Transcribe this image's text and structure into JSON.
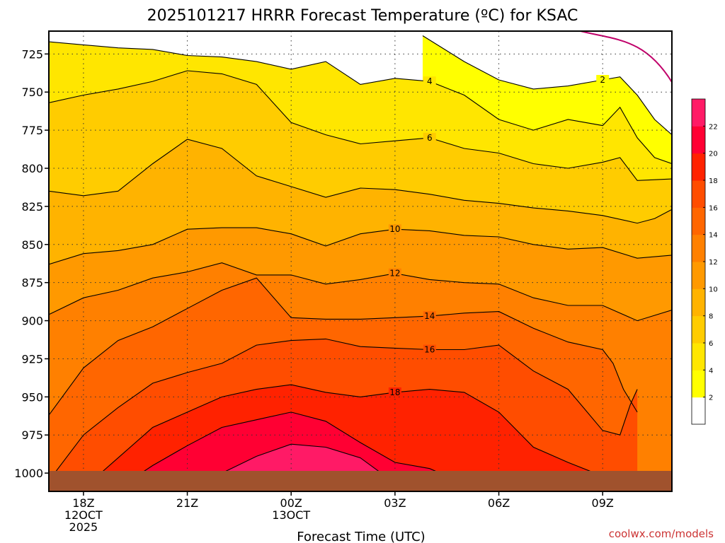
{
  "chart_data": {
    "type": "contour",
    "title": "2025101217 HRRR Forecast Temperature (ºC) for KSAC",
    "xlabel": "Forecast Time (UTC)",
    "ylabel": "",
    "credit": "coolwx.com/models",
    "x_unit": "hours since 2025-10-12 17Z",
    "xlim": [
      0,
      18
    ],
    "ylim": [
      1012,
      710
    ],
    "y_ticks": [
      725,
      750,
      775,
      800,
      825,
      850,
      875,
      900,
      925,
      950,
      975,
      1000
    ],
    "x_ticks": [
      {
        "x": 1,
        "lines": [
          "18Z",
          "12OCT",
          "2025"
        ]
      },
      {
        "x": 4,
        "lines": [
          "21Z"
        ]
      },
      {
        "x": 7,
        "lines": [
          "00Z",
          "13OCT"
        ]
      },
      {
        "x": 10,
        "lines": [
          "03Z"
        ]
      },
      {
        "x": 13,
        "lines": [
          "06Z"
        ]
      },
      {
        "x": 16,
        "lines": [
          "09Z"
        ]
      }
    ],
    "grid": true,
    "colorbar": {
      "levels": [
        0,
        2,
        4,
        6,
        8,
        10,
        12,
        14,
        16,
        18,
        20,
        22,
        24
      ],
      "tick_labels": [
        "2",
        "4",
        "6",
        "8",
        "10",
        "12",
        "14",
        "16",
        "18",
        "20",
        "22"
      ],
      "colors": [
        "#ffffff",
        "#ffff00",
        "#ffe600",
        "#ffcc00",
        "#ffb300",
        "#ff9900",
        "#ff8000",
        "#ff6600",
        "#ff4d00",
        "#ff2200",
        "#ff0033",
        "#ff1a66"
      ]
    },
    "contours": [
      {
        "level": 2,
        "label": "2",
        "points": [
          [
            10.8,
            713
          ],
          [
            12,
            730
          ],
          [
            13,
            742
          ],
          [
            14,
            748
          ],
          [
            15,
            746
          ],
          [
            16,
            742
          ],
          [
            16.5,
            740
          ],
          [
            17,
            752
          ],
          [
            17.5,
            768
          ],
          [
            18,
            778
          ]
        ]
      },
      {
        "level": 4,
        "label": "4",
        "points": [
          [
            0,
            717
          ],
          [
            1,
            719
          ],
          [
            2,
            721
          ],
          [
            3,
            722
          ],
          [
            4,
            726
          ],
          [
            5,
            727
          ],
          [
            6,
            730
          ],
          [
            7,
            735
          ],
          [
            8,
            730
          ],
          [
            9,
            745
          ],
          [
            10,
            741
          ],
          [
            11,
            743
          ],
          [
            12,
            752
          ],
          [
            13,
            768
          ],
          [
            14,
            775
          ],
          [
            15,
            768
          ],
          [
            16,
            772
          ],
          [
            16.5,
            760
          ],
          [
            17,
            780
          ],
          [
            17.5,
            793
          ],
          [
            18,
            797
          ]
        ]
      },
      {
        "level": 6,
        "label": "6",
        "points": [
          [
            0,
            757
          ],
          [
            1,
            752
          ],
          [
            2,
            748
          ],
          [
            3,
            743
          ],
          [
            4,
            736
          ],
          [
            5,
            738
          ],
          [
            6,
            745
          ],
          [
            7,
            770
          ],
          [
            8,
            778
          ],
          [
            9,
            784
          ],
          [
            10,
            782
          ],
          [
            11,
            780
          ],
          [
            12,
            787
          ],
          [
            13,
            790
          ],
          [
            14,
            797
          ],
          [
            15,
            800
          ],
          [
            16,
            796
          ],
          [
            16.5,
            793
          ],
          [
            17,
            808
          ],
          [
            18,
            807
          ]
        ]
      },
      {
        "level": 8,
        "label": "",
        "points": [
          [
            0,
            815
          ],
          [
            1,
            818
          ],
          [
            2,
            815
          ],
          [
            3,
            797
          ],
          [
            4,
            781
          ],
          [
            5,
            787
          ],
          [
            6,
            805
          ],
          [
            7,
            812
          ],
          [
            8,
            819
          ],
          [
            9,
            813
          ],
          [
            10,
            814
          ],
          [
            11,
            817
          ],
          [
            12,
            821
          ],
          [
            13,
            823
          ],
          [
            14,
            826
          ],
          [
            15,
            828
          ],
          [
            16,
            831
          ],
          [
            17,
            836
          ],
          [
            17.5,
            833
          ],
          [
            18,
            827
          ]
        ]
      },
      {
        "level": 10,
        "label": "10",
        "points": [
          [
            0,
            863
          ],
          [
            1,
            856
          ],
          [
            2,
            854
          ],
          [
            3,
            850
          ],
          [
            4,
            840
          ],
          [
            5,
            839
          ],
          [
            6,
            839
          ],
          [
            7,
            843
          ],
          [
            8,
            851
          ],
          [
            9,
            843
          ],
          [
            10,
            840
          ],
          [
            11,
            841
          ],
          [
            12,
            844
          ],
          [
            13,
            845
          ],
          [
            14,
            850
          ],
          [
            15,
            853
          ],
          [
            16,
            852
          ],
          [
            17,
            859
          ],
          [
            18,
            857
          ]
        ]
      },
      {
        "level": 12,
        "label": "12",
        "points": [
          [
            0,
            896
          ],
          [
            1,
            885
          ],
          [
            2,
            880
          ],
          [
            3,
            872
          ],
          [
            4,
            868
          ],
          [
            5,
            862
          ],
          [
            6,
            870
          ],
          [
            7,
            870
          ],
          [
            8,
            876
          ],
          [
            9,
            873
          ],
          [
            10,
            869
          ],
          [
            11,
            873
          ],
          [
            12,
            875
          ],
          [
            13,
            876
          ],
          [
            14,
            885
          ],
          [
            15,
            890
          ],
          [
            16,
            890
          ],
          [
            17,
            900
          ],
          [
            18,
            893
          ]
        ]
      },
      {
        "level": 14,
        "label": "14",
        "points": [
          [
            0,
            962
          ],
          [
            1,
            931
          ],
          [
            2,
            913
          ],
          [
            3,
            904
          ],
          [
            4,
            892
          ],
          [
            5,
            880
          ],
          [
            6,
            872
          ],
          [
            7,
            898
          ],
          [
            8,
            899
          ],
          [
            9,
            899
          ],
          [
            10,
            898
          ],
          [
            11,
            897
          ],
          [
            12,
            895
          ],
          [
            13,
            894
          ],
          [
            14,
            905
          ],
          [
            15,
            914
          ],
          [
            16,
            919
          ],
          [
            16.3,
            928
          ],
          [
            16.6,
            945
          ],
          [
            17,
            960
          ]
        ]
      },
      {
        "level": 16,
        "label": "16",
        "points": [
          [
            0,
            1005
          ],
          [
            1,
            975
          ],
          [
            2,
            957
          ],
          [
            3,
            941
          ],
          [
            4,
            934
          ],
          [
            5,
            928
          ],
          [
            6,
            916
          ],
          [
            7,
            913
          ],
          [
            8,
            912
          ],
          [
            9,
            917
          ],
          [
            10,
            918
          ],
          [
            11,
            919
          ],
          [
            12,
            919
          ],
          [
            13,
            916
          ],
          [
            14,
            933
          ],
          [
            15,
            945
          ],
          [
            16,
            972
          ],
          [
            16.5,
            975
          ],
          [
            16.8,
            955
          ],
          [
            17,
            945
          ]
        ]
      },
      {
        "level": 18,
        "label": "18",
        "points": [
          [
            1,
            1010
          ],
          [
            2,
            990
          ],
          [
            3,
            970
          ],
          [
            4,
            960
          ],
          [
            5,
            950
          ],
          [
            6,
            945
          ],
          [
            7,
            942
          ],
          [
            8,
            947
          ],
          [
            9,
            950
          ],
          [
            10,
            947
          ],
          [
            11,
            945
          ],
          [
            12,
            947
          ],
          [
            13,
            960
          ],
          [
            14,
            983
          ],
          [
            15,
            993
          ],
          [
            16,
            1002
          ],
          [
            16.5,
            1003
          ]
        ]
      },
      {
        "level": 20,
        "label": "",
        "points": [
          [
            2,
            1010
          ],
          [
            3,
            995
          ],
          [
            4,
            982
          ],
          [
            5,
            970
          ],
          [
            6,
            965
          ],
          [
            7,
            960
          ],
          [
            8,
            966
          ],
          [
            9,
            980
          ],
          [
            10,
            993
          ],
          [
            11,
            997
          ],
          [
            11.5,
            1002
          ],
          [
            12,
            1004
          ],
          [
            13,
            1005
          ],
          [
            13,
            1010
          ]
        ]
      },
      {
        "level": 22,
        "label": "",
        "points": [
          [
            4,
            1010
          ],
          [
            5,
            1000
          ],
          [
            6,
            989
          ],
          [
            7,
            981
          ],
          [
            8,
            983
          ],
          [
            9,
            990
          ],
          [
            9.6,
            1000
          ],
          [
            9.8,
            1003
          ],
          [
            10,
            1006
          ],
          [
            10.5,
            1008
          ]
        ]
      }
    ]
  }
}
